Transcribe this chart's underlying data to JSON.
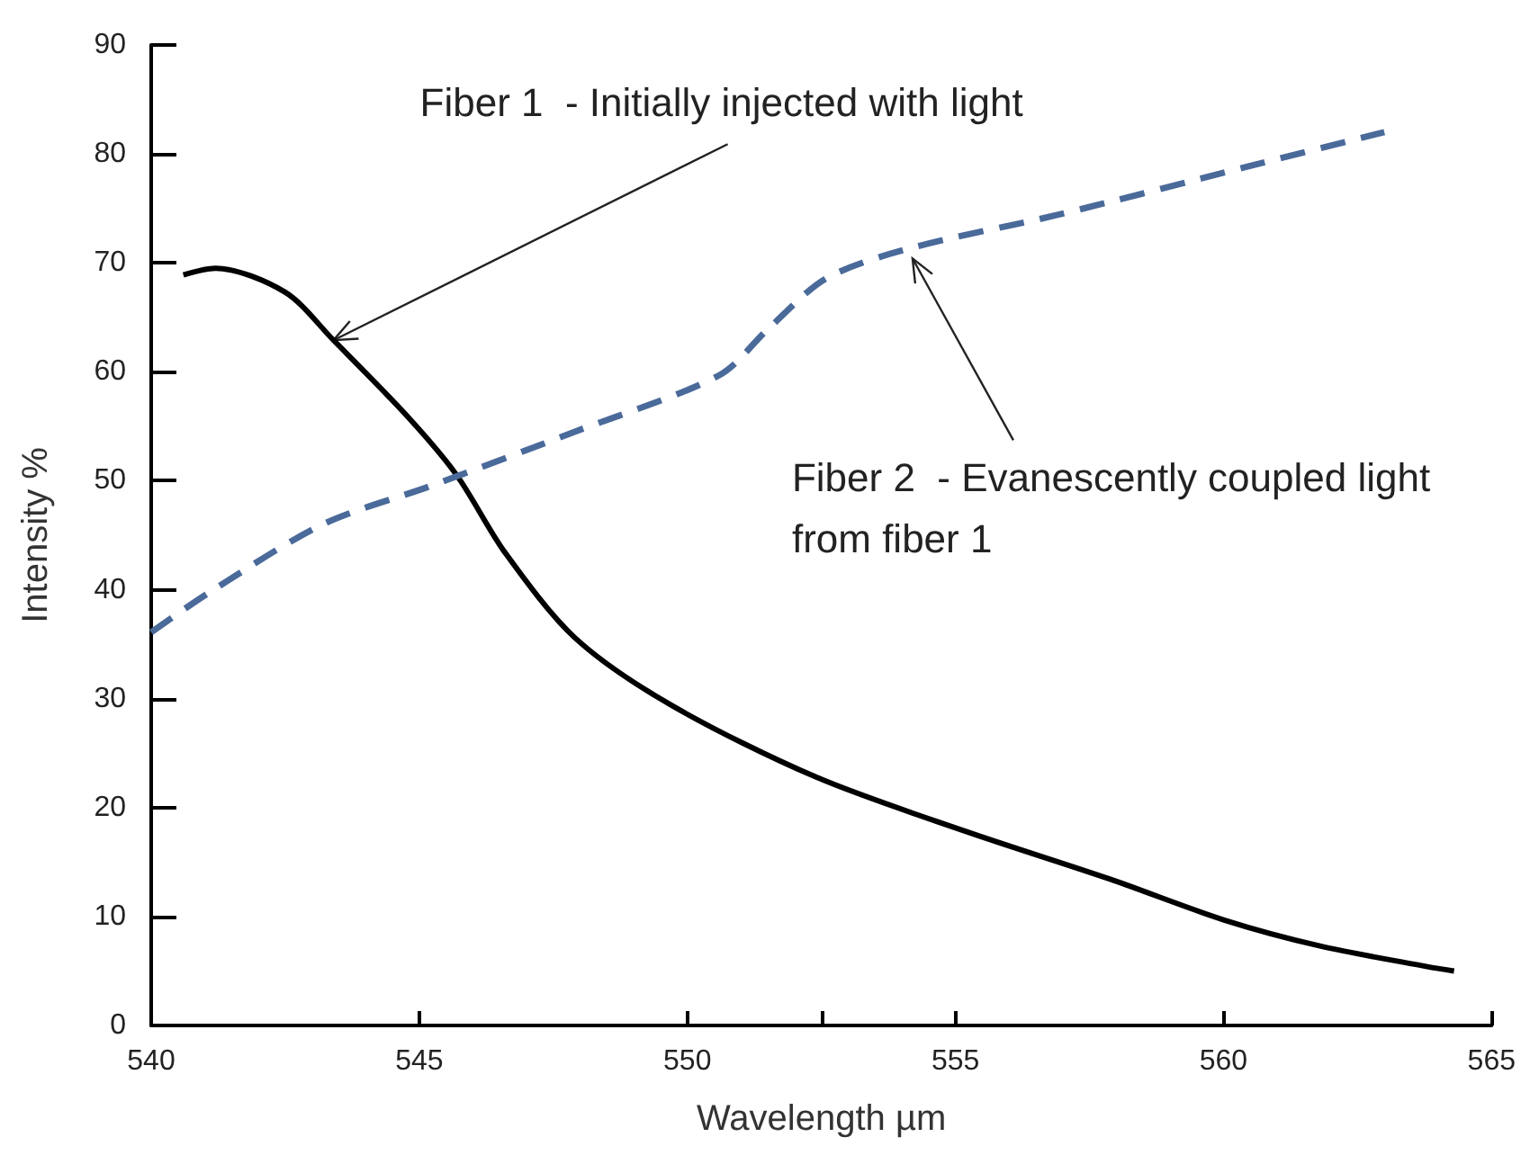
{
  "chart_data": {
    "type": "line",
    "xlabel": "Wavelength µm",
    "ylabel": "Intensity %",
    "xlim": [
      540,
      565
    ],
    "ylim": [
      0,
      90
    ],
    "xticks": [
      540,
      545,
      550,
      {
        "value": 552.5,
        "label": null
      },
      555,
      560,
      565
    ],
    "yticks": [
      0,
      10,
      20,
      30,
      40,
      50,
      60,
      70,
      80,
      90
    ],
    "grid": false,
    "marker": "none",
    "series": [
      {
        "color": "#000000",
        "line_style": "solid",
        "x": [
          540.6,
          541.2,
          542.5,
          543.4,
          544.8,
          545.7,
          546.6,
          547.9,
          549.7,
          552.4,
          555.2,
          557.9,
          560,
          561.8,
          563.8,
          564.3
        ],
        "values": [
          68.9,
          69.5,
          67.3,
          62.9,
          55.8,
          50.5,
          43.4,
          35.6,
          29.4,
          22.8,
          17.8,
          13.4,
          9.7,
          7.3,
          5.4,
          5.0
        ]
      },
      {
        "color": "#4a6a9a",
        "line_style": "dashed",
        "x": [
          540,
          541.1,
          543.2,
          545.2,
          547.9,
          550.6,
          551.5,
          552.6,
          554.2,
          556.9,
          560.5,
          563
        ],
        "values": [
          36.1,
          39.8,
          46.0,
          49.5,
          54.5,
          59.7,
          63.9,
          68.6,
          71.4,
          74.4,
          78.9,
          82.0
        ]
      }
    ],
    "annotations": [
      {
        "text": "Fiber 1  - Initially injected with light",
        "x": 543.4,
        "y": 62.9
      },
      {
        "text": "Fiber 2  - Evanescently coupled light from fiber 1",
        "x": 554.2,
        "y": 70.4
      }
    ]
  }
}
